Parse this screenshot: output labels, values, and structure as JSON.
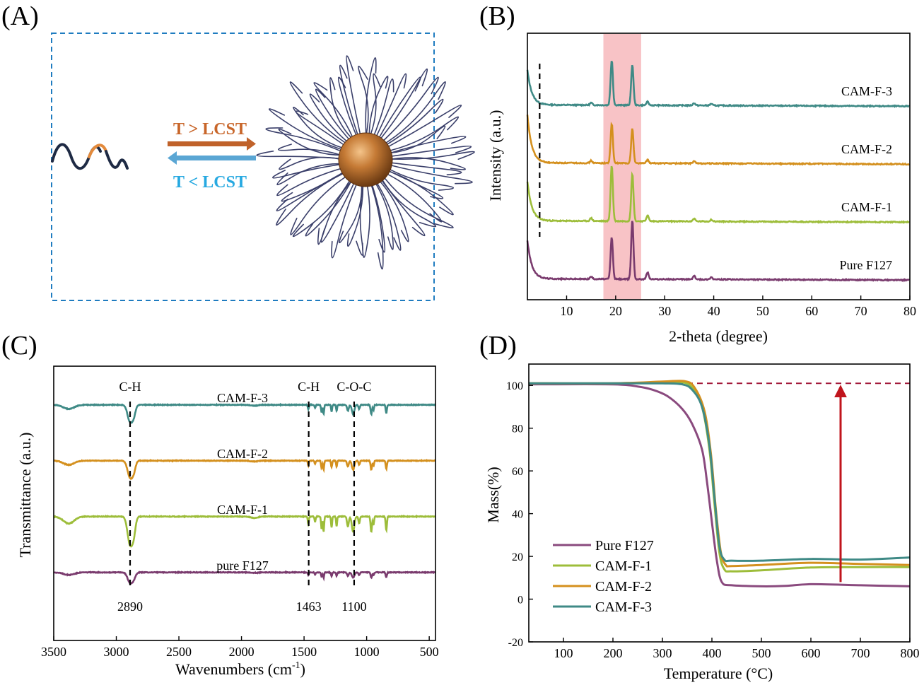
{
  "panels": {
    "A": {
      "letter": "(A)",
      "arrow_top_label": "T > LCST",
      "arrow_bottom_label": "T < LCST",
      "colors": {
        "top_arrow": "#c0622a",
        "bottom_arrow": "#5aa6d4",
        "top_text": "#c8662a",
        "bottom_text": "#27a9e1",
        "box": "#1f7cc0"
      }
    },
    "B": {
      "letter": "(B)"
    },
    "C": {
      "letter": "(C)"
    },
    "D": {
      "letter": "(D)"
    }
  },
  "chart_data": [
    {
      "id": "B",
      "type": "line",
      "title": "",
      "xlabel": "2-theta (degree)",
      "ylabel": "Intensity (a.u.)",
      "xlim": [
        2,
        80
      ],
      "xticks": [
        10,
        20,
        30,
        40,
        50,
        60,
        70,
        80
      ],
      "yticks_shown": false,
      "highlight_band": {
        "x_range": [
          17.5,
          25.2
        ],
        "color": "#f7b8bc"
      },
      "dashed_marker_x": 4.5,
      "offset_units": "stacked (arbitrary intensity units)",
      "series": [
        {
          "name": "CAM-F-3",
          "label": "CAM-F-3",
          "color": "#3f8a86",
          "baseline": 3.0,
          "peaks": [
            [
              19.2,
              0.78
            ],
            [
              23.4,
              0.7
            ],
            [
              15.0,
              0.04
            ],
            [
              26.5,
              0.06
            ],
            [
              36.0,
              0.04
            ],
            [
              39.5,
              0.03
            ]
          ],
          "edge_rise": 0.6
        },
        {
          "name": "CAM-F-2",
          "label": "CAM-F-2",
          "color": "#d4901e",
          "baseline": 2.0,
          "peaks": [
            [
              19.2,
              0.68
            ],
            [
              23.4,
              0.6
            ],
            [
              15.0,
              0.04
            ],
            [
              26.5,
              0.06
            ],
            [
              36.0,
              0.04
            ]
          ],
          "edge_rise": 0.82
        },
        {
          "name": "CAM-F-1",
          "label": "CAM-F-1",
          "color": "#9dbd3a",
          "baseline": 1.0,
          "peaks": [
            [
              19.2,
              0.96
            ],
            [
              23.4,
              0.82
            ],
            [
              15.0,
              0.05
            ],
            [
              26.5,
              0.1
            ],
            [
              36.0,
              0.05
            ],
            [
              39.5,
              0.03
            ]
          ],
          "edge_rise": 0.68
        },
        {
          "name": "Pure F127",
          "label": "Pure F127",
          "color": "#7a3b6e",
          "baseline": 0.0,
          "peaks": [
            [
              19.2,
              0.72
            ],
            [
              23.4,
              1.02
            ],
            [
              15.0,
              0.04
            ],
            [
              26.5,
              0.12
            ],
            [
              36.0,
              0.06
            ],
            [
              39.5,
              0.04
            ]
          ],
          "edge_rise": 0.66
        }
      ]
    },
    {
      "id": "C",
      "type": "line",
      "title": "",
      "xlabel": "Wavenumbers (cm",
      "xlabel_sup": "-1",
      "xlabel_end": ")",
      "ylabel": "Transmittance (a.u.)",
      "xlim": [
        3500,
        450
      ],
      "xticks": [
        3500,
        3000,
        2500,
        2000,
        1500,
        1000,
        500
      ],
      "yticks_shown": false,
      "markers": [
        {
          "x": 2890,
          "top_label": "C-H",
          "bottom_label": "2890"
        },
        {
          "x": 1463,
          "top_label": "C-H",
          "bottom_label": "1463"
        },
        {
          "x": 1100,
          "top_label": "C-O-C",
          "bottom_label": "1100"
        }
      ],
      "series": [
        {
          "name": "CAM-F-3",
          "label": "CAM-F-3",
          "color": "#3f8a86",
          "baseline": 3.0,
          "depth": 0.3
        },
        {
          "name": "CAM-F-2",
          "label": "CAM-F-2",
          "color": "#d4901e",
          "baseline": 2.0,
          "depth": 0.3
        },
        {
          "name": "CAM-F-1",
          "label": "CAM-F-1",
          "color": "#9dbd3a",
          "baseline": 1.0,
          "depth": 0.5
        },
        {
          "name": "pure F127",
          "label": "pure F127",
          "color": "#7a3b6e",
          "baseline": 0.0,
          "depth": 0.18
        }
      ]
    },
    {
      "id": "D",
      "type": "line",
      "title": "",
      "xlabel": "Temperature (°C)",
      "ylabel": "Mass(%)",
      "xlim": [
        30,
        800
      ],
      "ylim": [
        -20,
        110
      ],
      "xticks": [
        100,
        200,
        300,
        400,
        500,
        600,
        700,
        800
      ],
      "yticks": [
        -20,
        0,
        20,
        40,
        60,
        80,
        100
      ],
      "reference_line_y": 101,
      "reference_color": "#a31b3c",
      "arrow": {
        "x": 660,
        "from_y": 8,
        "to_y": 100,
        "color": "#c0141c"
      },
      "legend_position": "bottom-left",
      "series": [
        {
          "name": "Pure F127",
          "color": "#8a4a7e",
          "x": [
            30,
            200,
            250,
            280,
            310,
            340,
            360,
            380,
            390,
            400,
            410,
            420,
            440,
            500,
            550,
            600,
            700,
            800
          ],
          "y": [
            100.5,
            100.5,
            99.5,
            98,
            95,
            89,
            82,
            70,
            55,
            36,
            18,
            8,
            6.5,
            6,
            6.2,
            7,
            6.5,
            6
          ]
        },
        {
          "name": "CAM-F-1",
          "color": "#9dbd3a",
          "x": [
            30,
            200,
            300,
            340,
            360,
            380,
            395,
            405,
            415,
            425,
            440,
            500,
            600,
            700,
            800
          ],
          "y": [
            101,
            101,
            101.5,
            101.5,
            99,
            90,
            70,
            45,
            22,
            14,
            13,
            13.5,
            14.8,
            15,
            15
          ]
        },
        {
          "name": "CAM-F-2",
          "color": "#d4901e",
          "x": [
            30,
            200,
            300,
            345,
            365,
            385,
            398,
            408,
            418,
            428,
            440,
            500,
            600,
            700,
            800
          ],
          "y": [
            101,
            101,
            101.8,
            102,
            99,
            88,
            68,
            42,
            22,
            16,
            15.5,
            16,
            17,
            16.5,
            16
          ]
        },
        {
          "name": "CAM-F-3",
          "color": "#3f8a86",
          "x": [
            30,
            200,
            300,
            340,
            360,
            380,
            395,
            405,
            415,
            425,
            440,
            500,
            600,
            700,
            800
          ],
          "y": [
            101,
            101,
            101,
            100.5,
            98,
            90,
            72,
            48,
            25,
            18.5,
            18,
            18,
            18.8,
            18.5,
            19.5
          ]
        }
      ]
    }
  ]
}
